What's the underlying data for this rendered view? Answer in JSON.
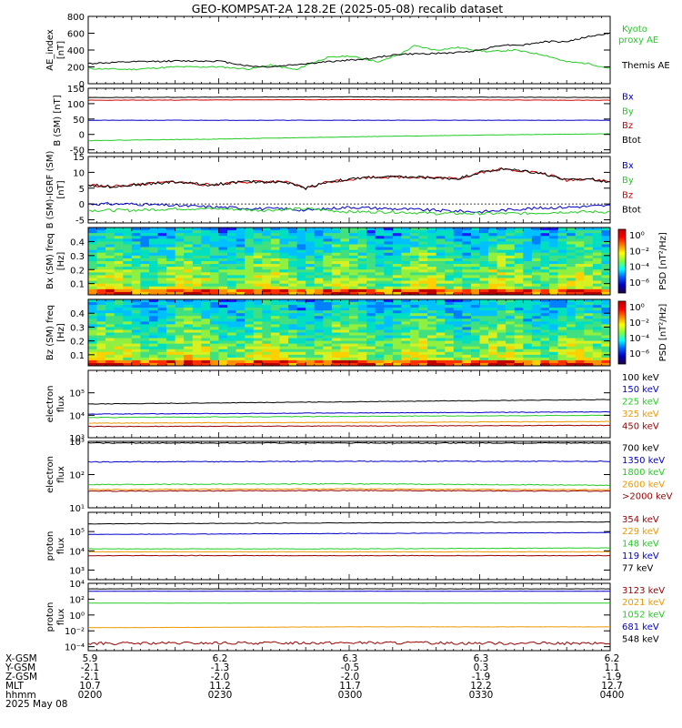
{
  "title": "GEO-KOMPSAT-2A 128.2E (2025-05-08) recalib dataset",
  "x_axis": {
    "time_start": "02:00",
    "time_end": "04:00",
    "ticks": [
      "0200",
      "0230",
      "0300",
      "0330",
      "0400"
    ]
  },
  "colorbar_label": "PSD [nT²/Hz]",
  "ephemeris": {
    "row_labels": [
      "X-GSM",
      "Y-GSM",
      "Z-GSM",
      "MLT",
      "hhmm"
    ],
    "date": "2025 May 08",
    "columns": [
      [
        "5.9",
        "-2.1",
        "-2.1",
        "10.7",
        "0200"
      ],
      [
        "6.2",
        "-1.3",
        "-2.0",
        "11.2",
        "0230"
      ],
      [
        "6.3",
        "-0.5",
        "-2.0",
        "11.7",
        "0300"
      ],
      [
        "6.3",
        "0.3",
        "-1.9",
        "12.2",
        "0330"
      ],
      [
        "6.2",
        "1.1",
        "-1.9",
        "12.7",
        "0400"
      ]
    ]
  },
  "chart_data": [
    {
      "type": "line",
      "ylabel": "AE_index [nT]",
      "ylim": [
        0,
        800
      ],
      "ticks": [
        "0",
        "200",
        "400",
        "600",
        "800"
      ],
      "series": [
        {
          "name": "Kyoto proxy AE",
          "color": "#22cc22",
          "x": [
            0,
            10,
            20,
            30,
            37,
            42,
            48,
            50,
            55,
            60,
            67,
            72,
            75,
            80,
            85,
            92,
            98,
            105,
            110,
            115,
            120
          ],
          "y": [
            180,
            170,
            200,
            200,
            175,
            220,
            165,
            220,
            310,
            330,
            260,
            360,
            450,
            400,
            430,
            380,
            400,
            340,
            260,
            240,
            180
          ]
        },
        {
          "name": "Themis AE",
          "color": "#000000",
          "x": [
            0,
            10,
            20,
            30,
            37,
            42,
            48,
            55,
            60,
            65,
            70,
            72,
            80,
            85,
            90,
            95,
            100,
            105,
            110,
            115,
            120
          ],
          "y": [
            240,
            260,
            270,
            270,
            210,
            200,
            230,
            260,
            280,
            300,
            340,
            350,
            360,
            370,
            400,
            460,
            460,
            500,
            500,
            560,
            600
          ]
        }
      ]
    },
    {
      "type": "line",
      "ylabel": "B (SM) [nT]",
      "ylim": [
        -60,
        150
      ],
      "ticks": [
        "-50",
        "0",
        "50",
        "100",
        "150"
      ],
      "series": [
        {
          "name": "Bx",
          "color": "#0000cc",
          "x": [
            0,
            120
          ],
          "y": [
            46,
            46
          ]
        },
        {
          "name": "By",
          "color": "#22cc22",
          "x": [
            0,
            30,
            60,
            90,
            120
          ],
          "y": [
            -20,
            -15,
            -8,
            -2,
            2
          ]
        },
        {
          "name": "Bz",
          "color": "#cc0000",
          "x": [
            0,
            30,
            60,
            90,
            120
          ],
          "y": [
            111,
            112,
            113,
            112,
            111
          ]
        },
        {
          "name": "Btot",
          "color": "#000000",
          "x": [
            0,
            30,
            60,
            90,
            120
          ],
          "y": [
            120,
            121,
            122,
            121,
            120
          ]
        }
      ]
    },
    {
      "type": "line",
      "ylabel": "B (SM)-IGRF (SM) [nT]",
      "ylim": [
        -6,
        15
      ],
      "ticks": [
        "-5",
        "0",
        "5",
        "10",
        "15"
      ],
      "series": [
        {
          "name": "Bx",
          "color": "#0000cc",
          "x": [
            0,
            10,
            20,
            30,
            40,
            45,
            50,
            60,
            70,
            80,
            90,
            100,
            110,
            120
          ],
          "y": [
            0,
            0,
            -0.5,
            -1,
            -1.5,
            -1.5,
            -2,
            -1,
            -1.5,
            -2,
            -2.5,
            -1.5,
            -1,
            -0.5
          ]
        },
        {
          "name": "By",
          "color": "#22cc22",
          "x": [
            0,
            10,
            20,
            30,
            40,
            50,
            60,
            70,
            80,
            90,
            100,
            110,
            120
          ],
          "y": [
            -2,
            -2,
            -1.5,
            -1.5,
            -2,
            -1.5,
            -2.5,
            -2.5,
            -3,
            -3,
            -3,
            -2.5,
            -2.5
          ]
        },
        {
          "name": "Bz",
          "color": "#cc0000",
          "x": [
            0,
            5,
            10,
            20,
            28,
            35,
            45,
            50,
            55,
            65,
            75,
            85,
            90,
            95,
            100,
            105,
            110,
            115,
            120
          ],
          "y": [
            6,
            5.5,
            6,
            7,
            6,
            7,
            7,
            5,
            7,
            8.5,
            8.5,
            8,
            10,
            11,
            10.5,
            9.5,
            7.5,
            8,
            7
          ]
        },
        {
          "name": "Btot",
          "color": "#000000",
          "x": [
            0,
            5,
            10,
            20,
            28,
            35,
            45,
            50,
            55,
            65,
            75,
            85,
            90,
            95,
            100,
            105,
            110,
            115,
            120
          ],
          "y": [
            6,
            5.5,
            6,
            7,
            6,
            7,
            7,
            5,
            7,
            8.5,
            8.5,
            8,
            10,
            11,
            10.5,
            9.5,
            7.5,
            8,
            7
          ]
        }
      ]
    },
    {
      "type": "heatmap",
      "ylabel": "Bx (SM) freq [Hz]",
      "ylim": [
        0.02,
        0.5
      ],
      "ticks": [
        "0.1",
        "0.2",
        "0.3",
        "0.4"
      ],
      "colorbar_ticks": [
        "10⁰",
        "10⁻²",
        "10⁻⁴",
        "10⁻⁶"
      ]
    },
    {
      "type": "heatmap",
      "ylabel": "Bz (SM) freq [Hz]",
      "ylim": [
        0.02,
        0.5
      ],
      "ticks": [
        "0.1",
        "0.2",
        "0.3",
        "0.4"
      ],
      "colorbar_ticks": [
        "10⁰",
        "10⁻²",
        "10⁻⁴",
        "10⁻⁶"
      ]
    },
    {
      "type": "line",
      "ylabel": "electron flux",
      "log": true,
      "ylim_exp": [
        3,
        6
      ],
      "ticks": [
        "10³",
        "10⁴",
        "10⁵"
      ],
      "series": [
        {
          "name": "100 keV",
          "color": "#000000",
          "x": [
            0,
            60,
            120
          ],
          "y_exp": [
            4.5,
            4.6,
            4.7
          ]
        },
        {
          "name": "150 keV",
          "color": "#0000cc",
          "x": [
            0,
            60,
            120
          ],
          "y_exp": [
            4.05,
            4.1,
            4.15
          ]
        },
        {
          "name": "225 keV",
          "color": "#22cc22",
          "x": [
            0,
            60,
            120
          ],
          "y_exp": [
            3.9,
            3.95,
            4.0
          ]
        },
        {
          "name": "325 keV",
          "color": "#ee9900",
          "x": [
            0,
            60,
            120
          ],
          "y_exp": [
            3.65,
            3.68,
            3.72
          ]
        },
        {
          "name": "450 keV",
          "color": "#990000",
          "x": [
            0,
            60,
            120
          ],
          "y_exp": [
            3.5,
            3.52,
            3.55
          ]
        }
      ]
    },
    {
      "type": "line",
      "ylabel": "electron flux",
      "log": true,
      "ylim_exp": [
        1,
        3
      ],
      "ticks": [
        "10¹",
        "10²",
        "10³"
      ],
      "series": [
        {
          "name": "700 keV",
          "color": "#000000",
          "x": [
            0,
            60,
            120
          ],
          "y_exp": [
            2.95,
            2.95,
            2.95
          ]
        },
        {
          "name": "1350 keV",
          "color": "#0000cc",
          "x": [
            0,
            60,
            120
          ],
          "y_exp": [
            2.38,
            2.4,
            2.4
          ]
        },
        {
          "name": "1800 keV",
          "color": "#22cc22",
          "x": [
            0,
            60,
            120
          ],
          "y_exp": [
            1.7,
            1.72,
            1.68
          ]
        },
        {
          "name": "2600 keV",
          "color": "#ee9900",
          "x": [
            0,
            60,
            120
          ],
          "y_exp": [
            1.55,
            1.57,
            1.54
          ]
        },
        {
          "name": ">2000 keV",
          "color": "#990000",
          "x": [
            0,
            60,
            120
          ],
          "y_exp": [
            1.5,
            1.52,
            1.5
          ]
        }
      ]
    },
    {
      "type": "line",
      "ylabel": "proton flux",
      "log": true,
      "ylim_exp": [
        2.5,
        6
      ],
      "ticks": [
        "10³",
        "10⁴",
        "10⁵"
      ],
      "series": [
        {
          "name": "354 keV",
          "color": "#990000",
          "x": [
            0,
            60,
            120
          ],
          "y_exp": [
            3.75,
            3.75,
            3.75
          ]
        },
        {
          "name": "229 keV",
          "color": "#ee9900",
          "x": [
            0,
            60,
            120
          ],
          "y_exp": [
            3.95,
            3.95,
            3.95
          ]
        },
        {
          "name": "148 keV",
          "color": "#22cc22",
          "x": [
            0,
            60,
            120
          ],
          "y_exp": [
            4.1,
            4.1,
            4.15
          ]
        },
        {
          "name": "119 keV",
          "color": "#0000cc",
          "x": [
            0,
            60,
            120
          ],
          "y_exp": [
            4.85,
            4.9,
            4.95
          ]
        },
        {
          "name": "77 keV",
          "color": "#000000",
          "x": [
            0,
            60,
            120
          ],
          "y_exp": [
            5.4,
            5.45,
            5.5
          ]
        }
      ]
    },
    {
      "type": "line",
      "ylabel": "proton flux",
      "log": true,
      "ylim_exp": [
        -4.5,
        4
      ],
      "ticks": [
        "10⁻⁴",
        "10⁻²",
        "10⁰",
        "10²",
        "10⁴"
      ],
      "series": [
        {
          "name": "3123 keV",
          "color": "#990000",
          "x": [
            0,
            60,
            120
          ],
          "y_exp": [
            -3.6,
            -3.5,
            -3.6
          ]
        },
        {
          "name": "2021 keV",
          "color": "#ee9900",
          "x": [
            0,
            60,
            120
          ],
          "y_exp": [
            -1.6,
            -1.5,
            -1.5
          ]
        },
        {
          "name": "1052 keV",
          "color": "#22cc22",
          "x": [
            0,
            60,
            120
          ],
          "y_exp": [
            1.5,
            1.5,
            1.5
          ]
        },
        {
          "name": "681 keV",
          "color": "#0000cc",
          "x": [
            0,
            60,
            120
          ],
          "y_exp": [
            3.0,
            3.0,
            3.0
          ]
        },
        {
          "name": "548 keV",
          "color": "#000000",
          "x": [
            0,
            60,
            120
          ],
          "y_exp": [
            3.3,
            3.3,
            3.3
          ]
        }
      ]
    }
  ]
}
